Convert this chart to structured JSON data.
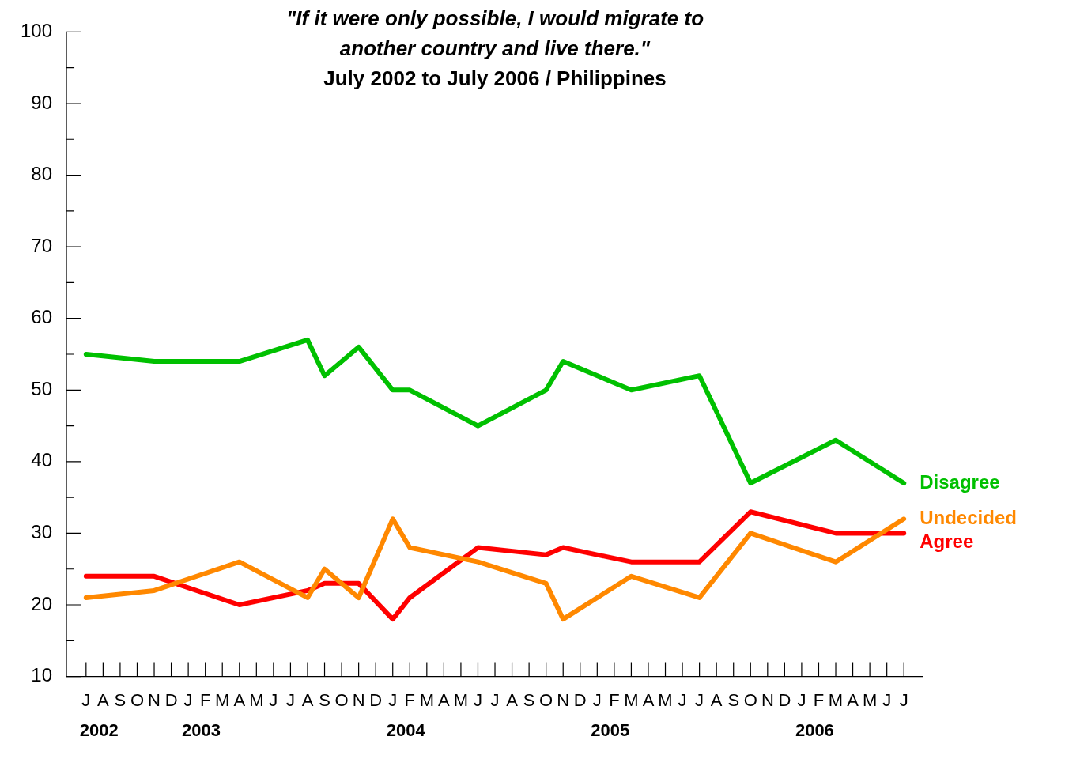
{
  "chart_data": {
    "type": "line",
    "title": "\"If it were only possible, I would migrate to another country and live there.\"",
    "subtitle": "July 2002 to July 2006 / Philippines",
    "categories": [
      "J",
      "A",
      "S",
      "O",
      "N",
      "D",
      "J",
      "F",
      "M",
      "A",
      "M",
      "J",
      "J",
      "A",
      "S",
      "O",
      "N",
      "D",
      "J",
      "F",
      "M",
      "A",
      "M",
      "J",
      "J",
      "A",
      "S",
      "O",
      "N",
      "D",
      "J",
      "F",
      "M",
      "A",
      "M",
      "J",
      "J",
      "A",
      "S",
      "O",
      "N",
      "D",
      "J",
      "F",
      "M",
      "A",
      "M",
      "J",
      "J"
    ],
    "series": [
      {
        "name": "Disagree",
        "color": "#00c000",
        "values": [
          55,
          null,
          null,
          null,
          54,
          null,
          null,
          null,
          null,
          54,
          null,
          null,
          null,
          57,
          52,
          null,
          56,
          null,
          50,
          50,
          null,
          null,
          null,
          45,
          null,
          null,
          null,
          50,
          54,
          null,
          null,
          null,
          50,
          null,
          null,
          null,
          52,
          null,
          null,
          37,
          null,
          null,
          null,
          null,
          43,
          null,
          null,
          null,
          37
        ]
      },
      {
        "name": "Undecided",
        "color": "#ff8800",
        "values": [
          21,
          null,
          null,
          null,
          22,
          null,
          null,
          null,
          null,
          26,
          null,
          null,
          null,
          21,
          25,
          null,
          21,
          null,
          32,
          28,
          null,
          null,
          null,
          26,
          null,
          null,
          null,
          23,
          18,
          null,
          null,
          null,
          24,
          null,
          null,
          null,
          21,
          null,
          null,
          30,
          null,
          null,
          null,
          null,
          26,
          null,
          null,
          null,
          32
        ]
      },
      {
        "name": "Agree",
        "color": "#ff0000",
        "values": [
          24,
          null,
          null,
          null,
          24,
          null,
          null,
          null,
          null,
          20,
          null,
          null,
          null,
          22,
          23,
          null,
          23,
          null,
          18,
          21,
          null,
          null,
          null,
          28,
          null,
          null,
          null,
          27,
          28,
          null,
          null,
          null,
          26,
          null,
          null,
          null,
          26,
          null,
          null,
          33,
          null,
          null,
          null,
          null,
          30,
          null,
          null,
          null,
          30
        ]
      }
    ],
    "ylim": [
      10,
      100
    ],
    "yticks": [
      10,
      {
        "value": 15,
        "label": null
      },
      20,
      {
        "value": 25,
        "label": null
      },
      30,
      {
        "value": 35,
        "label": null
      },
      40,
      {
        "value": 45,
        "label": null
      },
      50,
      {
        "value": 55,
        "label": null
      },
      60,
      {
        "value": 65,
        "label": null
      },
      70,
      {
        "value": 75,
        "label": null
      },
      80,
      {
        "value": 85,
        "label": null
      },
      90,
      {
        "value": 95,
        "label": null
      },
      100
    ],
    "annotations": [
      "2002",
      "2003",
      "2004",
      "2005",
      "2006"
    ],
    "grid": false,
    "legend": false,
    "marker": "none",
    "line_style": "solid"
  }
}
